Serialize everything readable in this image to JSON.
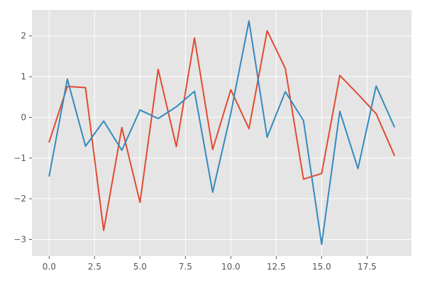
{
  "chart_data": {
    "type": "line",
    "title": "",
    "xlabel": "",
    "ylabel": "",
    "xlim": [
      -0.95,
      19.95
    ],
    "ylim": [
      -3.41,
      2.64
    ],
    "grid": true,
    "xticks": [
      0,
      2.5,
      5,
      7.5,
      10,
      12.5,
      15,
      17.5
    ],
    "xtick_labels": [
      "0.0",
      "2.5",
      "5.0",
      "7.5",
      "10.0",
      "12.5",
      "15.0",
      "17.5"
    ],
    "yticks": [
      -3,
      -2,
      -1,
      0,
      1,
      2
    ],
    "ytick_labels": [
      "−3",
      "−2",
      "−1",
      "0",
      "1",
      "2"
    ],
    "x": [
      0,
      1,
      2,
      3,
      4,
      5,
      6,
      7,
      8,
      9,
      10,
      11,
      12,
      13,
      14,
      15,
      16,
      17,
      18,
      19
    ],
    "series": [
      {
        "color": "#E24A33",
        "values": [
          -0.6,
          0.76,
          0.73,
          -2.78,
          -0.25,
          -2.09,
          1.18,
          -0.72,
          1.95,
          -0.79,
          0.68,
          -0.28,
          2.13,
          1.2,
          -1.52,
          -1.38,
          1.03,
          0.57,
          0.09,
          -0.93
        ]
      },
      {
        "color": "#348ABD",
        "values": [
          -1.44,
          0.94,
          -0.71,
          -0.09,
          -0.81,
          0.18,
          -0.03,
          0.26,
          0.64,
          -1.84,
          0.1,
          2.37,
          -0.49,
          0.63,
          -0.08,
          -3.12,
          0.15,
          -1.26,
          0.77,
          -0.23
        ]
      }
    ],
    "style": {
      "plot_background": "#E5E5E5",
      "grid_color": "#FFFFFF",
      "tick_color": "#555555"
    }
  }
}
